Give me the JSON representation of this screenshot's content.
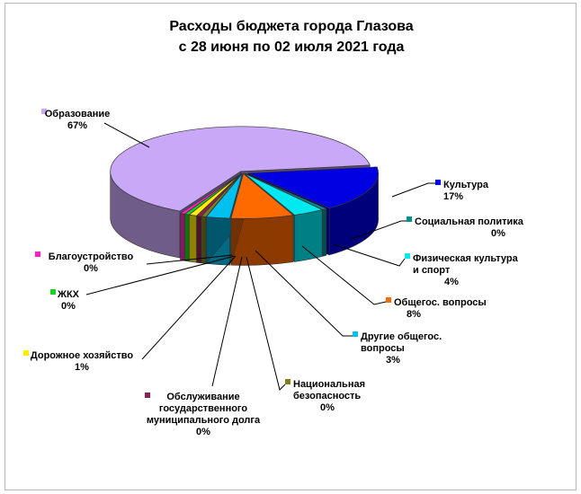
{
  "chart_data": {
    "type": "pie",
    "title": "Расходы бюджета города Глазова",
    "subtitle": "с 28 июня по 02 июля 2021 года",
    "slices": [
      {
        "label": "Культура",
        "value_label": "17%",
        "value": 17,
        "color": "#0000e0"
      },
      {
        "label": "Социальная политика",
        "value_label": "0%",
        "value": 0,
        "color": "#009090"
      },
      {
        "label": "Физическая культура и спорт",
        "value_label": "4%",
        "value": 4,
        "color": "#00e8f0"
      },
      {
        "label": "Общегос. вопросы",
        "value_label": "8%",
        "value": 8,
        "color": "#ff6a00"
      },
      {
        "label": "Другие общегос. вопросы",
        "value_label": "3%",
        "value": 3,
        "color": "#00c0f0"
      },
      {
        "label": "Национальная безопасность",
        "value_label": "0%",
        "value": 0,
        "color": "#808020"
      },
      {
        "label": "Обслуживание государственного муниципального долга",
        "value_label": "0%",
        "value": 0,
        "color": "#902050"
      },
      {
        "label": "Дорожное хозяйство",
        "value_label": "1%",
        "value": 1,
        "color": "#ffee00"
      },
      {
        "label": "ЖКХ",
        "value_label": "0%",
        "value": 0,
        "color": "#20d020"
      },
      {
        "label": "Благоустройство",
        "value_label": "0%",
        "value": 0,
        "color": "#ff20c0"
      },
      {
        "label": "Образование",
        "value_label": "67%",
        "value": 67,
        "color": "#c9a8f8"
      }
    ]
  }
}
